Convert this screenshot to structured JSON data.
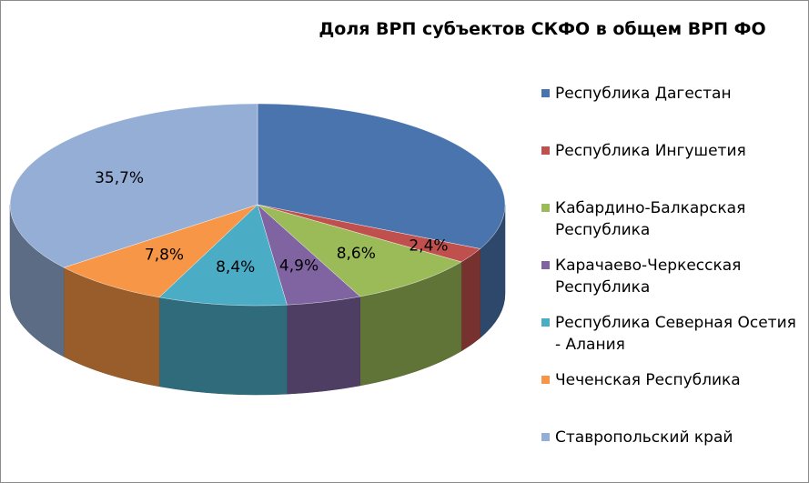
{
  "chart_data": {
    "type": "pie",
    "title": "Доля ВРП субъектов СКФО в общем ВРП ФО",
    "legend_position": "right",
    "three_d": true,
    "series": [
      {
        "name": "Республика Дагестан",
        "value": 32.2,
        "label": "",
        "color": "#4a74ae"
      },
      {
        "name": "Республика Ингушетия",
        "value": 2.4,
        "label": "2,4%",
        "color": "#c0504d"
      },
      {
        "name": "Кабардино-Балкарская Республика",
        "value": 8.6,
        "label": "8,6%",
        "color": "#9bbb59"
      },
      {
        "name": "Карачаево-Черкесская Республика",
        "value": 4.9,
        "label": "4,9%",
        "color": "#8064a2"
      },
      {
        "name": "Республика Северная Осетия - Алания",
        "value": 8.4,
        "label": "8,4%",
        "color": "#4bacc6"
      },
      {
        "name": "Чеченская Республика",
        "value": 7.8,
        "label": "7,8%",
        "color": "#f79646"
      },
      {
        "name": "Ставропольский край",
        "value": 35.7,
        "label": "35,7%",
        "color": "#95aed6"
      }
    ]
  }
}
